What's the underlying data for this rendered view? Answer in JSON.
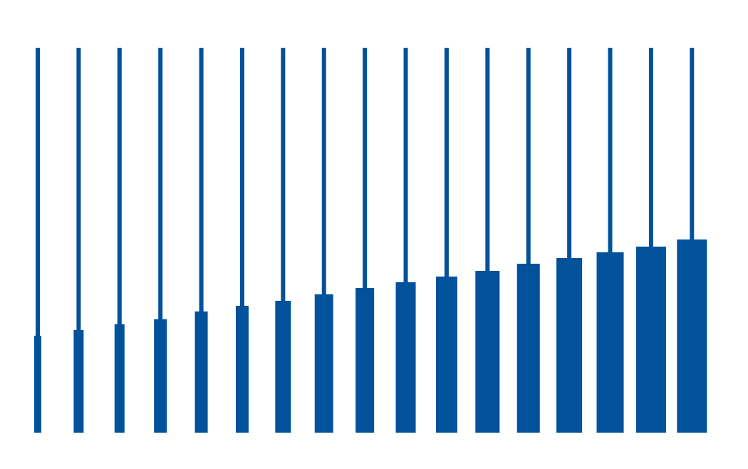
{
  "chart_data": {
    "type": "bar",
    "categories": [
      null,
      null,
      null,
      null,
      null,
      null,
      null,
      null,
      null,
      null,
      null,
      null,
      null,
      null,
      null,
      null,
      null
    ],
    "values": [
      136,
      144,
      152,
      159,
      170,
      178,
      185,
      194,
      203,
      211,
      219,
      227,
      237,
      245,
      253,
      261,
      271
    ],
    "widths": [
      10,
      14,
      14,
      18,
      18,
      18,
      22,
      26,
      26,
      28,
      30,
      34,
      32,
      36,
      38,
      42,
      42
    ],
    "color": "#02519b",
    "ylim": [
      0,
      540
    ]
  }
}
